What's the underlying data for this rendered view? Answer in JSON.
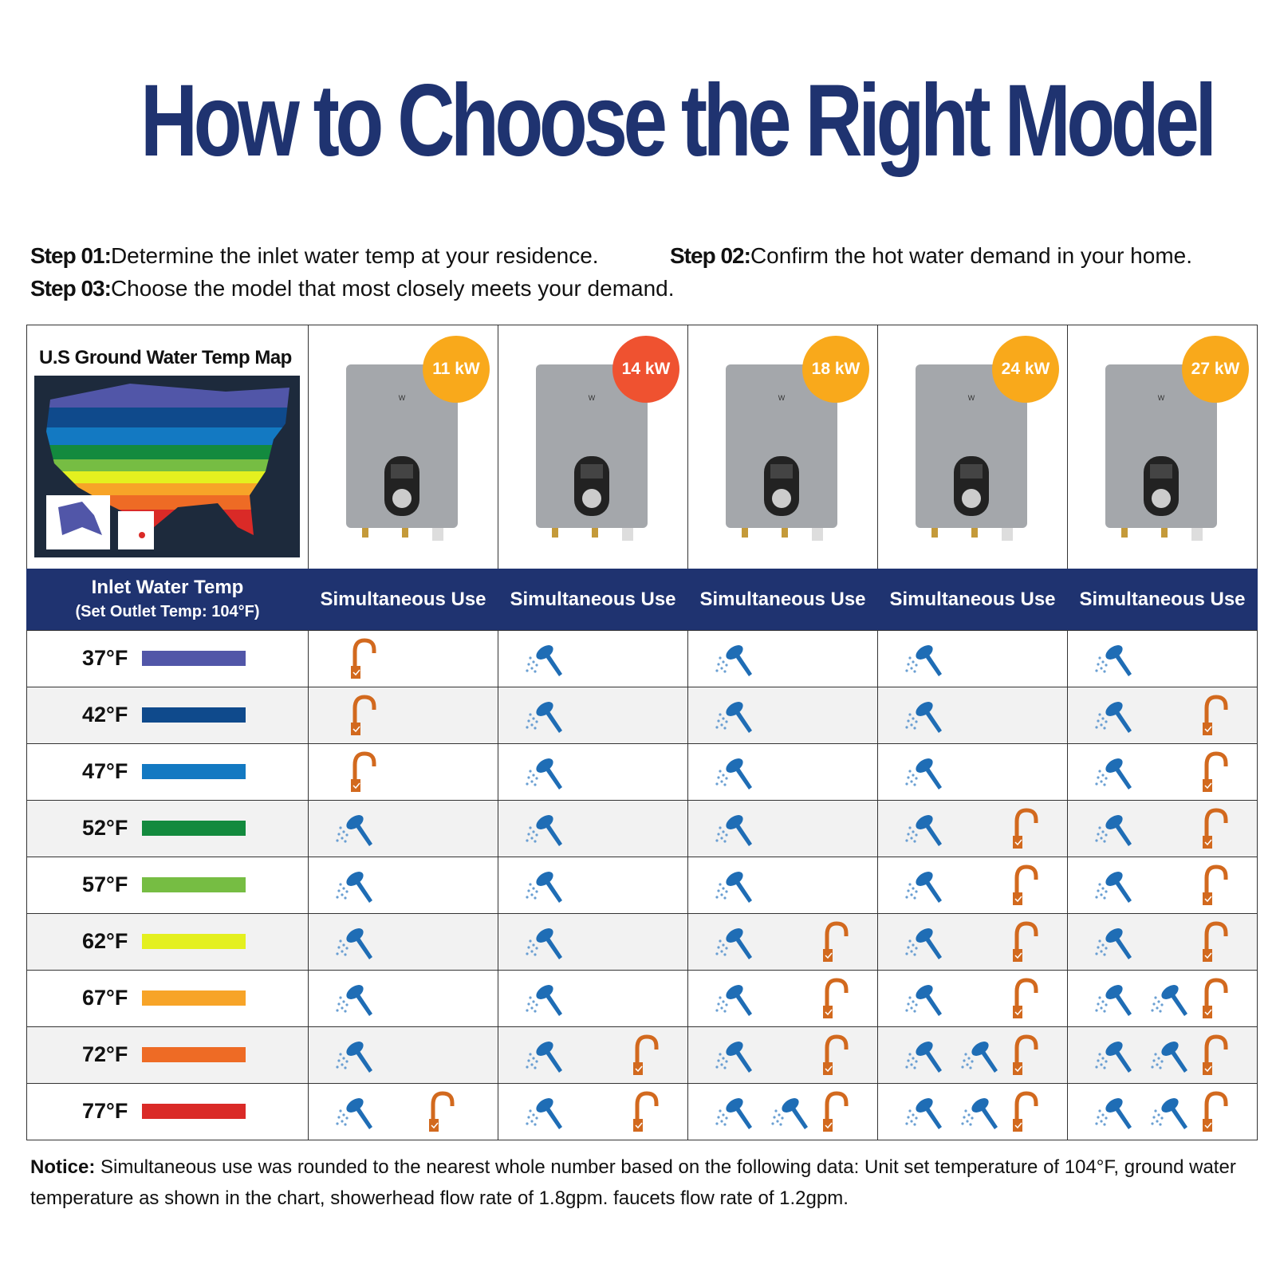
{
  "header": {
    "title": "How to Choose the Right Model"
  },
  "steps": [
    {
      "label": "Step  01:",
      "text": "Determine the inlet water temp at your residence."
    },
    {
      "label": "Step 02:",
      "text": "Confirm the hot water demand in your home."
    },
    {
      "label": "Step 03:",
      "text": "Choose the model that most closely meets your demand."
    }
  ],
  "table": {
    "map_title": "U.S Ground Water Temp Map",
    "models": [
      {
        "power": "11 kW",
        "badge_color": "#f9a91b"
      },
      {
        "power": "14 kW",
        "badge_color": "#ef5230"
      },
      {
        "power": "18 kW",
        "badge_color": "#f9a91b"
      },
      {
        "power": "24 kW",
        "badge_color": "#f9a91b"
      },
      {
        "power": "27 kW",
        "badge_color": "#f9a91b"
      }
    ],
    "header_label": "Inlet Water Temp",
    "header_sublabel": "(Set Outlet Temp: 104°F)",
    "column_header": "Simultaneous Use",
    "rows": [
      {
        "temp": "37°F",
        "color": "#5156a8",
        "cells": [
          {
            "showers": 0,
            "faucets": 1
          },
          {
            "showers": 1,
            "faucets": 0
          },
          {
            "showers": 1,
            "faucets": 0
          },
          {
            "showers": 1,
            "faucets": 0
          },
          {
            "showers": 1,
            "faucets": 0
          }
        ]
      },
      {
        "temp": "42°F",
        "color": "#0f4a8c",
        "cells": [
          {
            "showers": 0,
            "faucets": 1
          },
          {
            "showers": 1,
            "faucets": 0
          },
          {
            "showers": 1,
            "faucets": 0
          },
          {
            "showers": 1,
            "faucets": 0
          },
          {
            "showers": 1,
            "faucets": 1
          }
        ]
      },
      {
        "temp": "47°F",
        "color": "#1379c2",
        "cells": [
          {
            "showers": 0,
            "faucets": 1
          },
          {
            "showers": 1,
            "faucets": 0
          },
          {
            "showers": 1,
            "faucets": 0
          },
          {
            "showers": 1,
            "faucets": 0
          },
          {
            "showers": 1,
            "faucets": 1
          }
        ]
      },
      {
        "temp": "52°F",
        "color": "#138a3e",
        "cells": [
          {
            "showers": 1,
            "faucets": 0
          },
          {
            "showers": 1,
            "faucets": 0
          },
          {
            "showers": 1,
            "faucets": 0
          },
          {
            "showers": 1,
            "faucets": 1
          },
          {
            "showers": 1,
            "faucets": 1
          }
        ]
      },
      {
        "temp": "57°F",
        "color": "#76bd43",
        "cells": [
          {
            "showers": 1,
            "faucets": 0
          },
          {
            "showers": 1,
            "faucets": 0
          },
          {
            "showers": 1,
            "faucets": 0
          },
          {
            "showers": 1,
            "faucets": 1
          },
          {
            "showers": 1,
            "faucets": 1
          }
        ]
      },
      {
        "temp": "62°F",
        "color": "#e4f01f",
        "cells": [
          {
            "showers": 1,
            "faucets": 0
          },
          {
            "showers": 1,
            "faucets": 0
          },
          {
            "showers": 1,
            "faucets": 1
          },
          {
            "showers": 1,
            "faucets": 1
          },
          {
            "showers": 1,
            "faucets": 1
          }
        ]
      },
      {
        "temp": "67°F",
        "color": "#f7a428",
        "cells": [
          {
            "showers": 1,
            "faucets": 0
          },
          {
            "showers": 1,
            "faucets": 0
          },
          {
            "showers": 1,
            "faucets": 1
          },
          {
            "showers": 1,
            "faucets": 1
          },
          {
            "showers": 2,
            "faucets": 1
          }
        ]
      },
      {
        "temp": "72°F",
        "color": "#ee6b25",
        "cells": [
          {
            "showers": 1,
            "faucets": 0
          },
          {
            "showers": 1,
            "faucets": 1
          },
          {
            "showers": 1,
            "faucets": 1
          },
          {
            "showers": 2,
            "faucets": 1
          },
          {
            "showers": 2,
            "faucets": 1
          }
        ]
      },
      {
        "temp": "77°F",
        "color": "#da2a27",
        "cells": [
          {
            "showers": 1,
            "faucets": 1
          },
          {
            "showers": 1,
            "faucets": 1
          },
          {
            "showers": 2,
            "faucets": 1
          },
          {
            "showers": 2,
            "faucets": 1
          },
          {
            "showers": 2,
            "faucets": 1
          }
        ]
      }
    ]
  },
  "notice": {
    "label": "Notice:",
    "text": "Simultaneous use was rounded to the nearest whole number based on the following data: Unit set temperature of 104°F, ground water temperature as shown in the chart, showerhead flow rate of 1.8gpm. faucets flow rate of 1.2gpm."
  }
}
